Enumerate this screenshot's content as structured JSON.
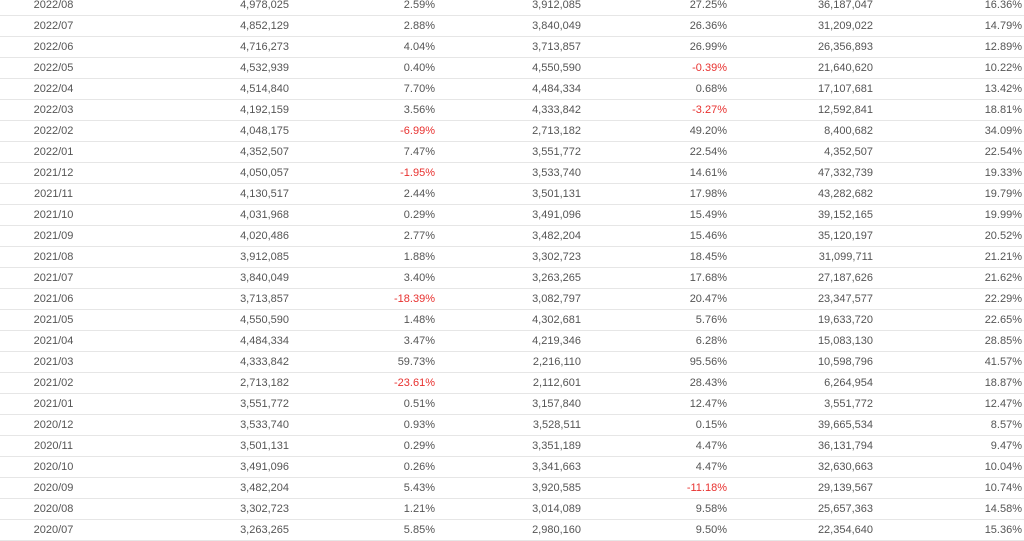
{
  "table": {
    "rows": [
      [
        "2022/08",
        "4,978,025",
        "2.59%",
        "3,912,085",
        "27.25%",
        "36,187,047",
        "16.36%"
      ],
      [
        "2022/07",
        "4,852,129",
        "2.88%",
        "3,840,049",
        "26.36%",
        "31,209,022",
        "14.79%"
      ],
      [
        "2022/06",
        "4,716,273",
        "4.04%",
        "3,713,857",
        "26.99%",
        "26,356,893",
        "12.89%"
      ],
      [
        "2022/05",
        "4,532,939",
        "0.40%",
        "4,550,590",
        "-0.39%",
        "21,640,620",
        "10.22%"
      ],
      [
        "2022/04",
        "4,514,840",
        "7.70%",
        "4,484,334",
        "0.68%",
        "17,107,681",
        "13.42%"
      ],
      [
        "2022/03",
        "4,192,159",
        "3.56%",
        "4,333,842",
        "-3.27%",
        "12,592,841",
        "18.81%"
      ],
      [
        "2022/02",
        "4,048,175",
        "-6.99%",
        "2,713,182",
        "49.20%",
        "8,400,682",
        "34.09%"
      ],
      [
        "2022/01",
        "4,352,507",
        "7.47%",
        "3,551,772",
        "22.54%",
        "4,352,507",
        "22.54%"
      ],
      [
        "2021/12",
        "4,050,057",
        "-1.95%",
        "3,533,740",
        "14.61%",
        "47,332,739",
        "19.33%"
      ],
      [
        "2021/11",
        "4,130,517",
        "2.44%",
        "3,501,131",
        "17.98%",
        "43,282,682",
        "19.79%"
      ],
      [
        "2021/10",
        "4,031,968",
        "0.29%",
        "3,491,096",
        "15.49%",
        "39,152,165",
        "19.99%"
      ],
      [
        "2021/09",
        "4,020,486",
        "2.77%",
        "3,482,204",
        "15.46%",
        "35,120,197",
        "20.52%"
      ],
      [
        "2021/08",
        "3,912,085",
        "1.88%",
        "3,302,723",
        "18.45%",
        "31,099,711",
        "21.21%"
      ],
      [
        "2021/07",
        "3,840,049",
        "3.40%",
        "3,263,265",
        "17.68%",
        "27,187,626",
        "21.62%"
      ],
      [
        "2021/06",
        "3,713,857",
        "-18.39%",
        "3,082,797",
        "20.47%",
        "23,347,577",
        "22.29%"
      ],
      [
        "2021/05",
        "4,550,590",
        "1.48%",
        "4,302,681",
        "5.76%",
        "19,633,720",
        "22.65%"
      ],
      [
        "2021/04",
        "4,484,334",
        "3.47%",
        "4,219,346",
        "6.28%",
        "15,083,130",
        "28.85%"
      ],
      [
        "2021/03",
        "4,333,842",
        "59.73%",
        "2,216,110",
        "95.56%",
        "10,598,796",
        "41.57%"
      ],
      [
        "2021/02",
        "2,713,182",
        "-23.61%",
        "2,112,601",
        "28.43%",
        "6,264,954",
        "18.87%"
      ],
      [
        "2021/01",
        "3,551,772",
        "0.51%",
        "3,157,840",
        "12.47%",
        "3,551,772",
        "12.47%"
      ],
      [
        "2020/12",
        "3,533,740",
        "0.93%",
        "3,528,511",
        "0.15%",
        "39,665,534",
        "8.57%"
      ],
      [
        "2020/11",
        "3,501,131",
        "0.29%",
        "3,351,189",
        "4.47%",
        "36,131,794",
        "9.47%"
      ],
      [
        "2020/10",
        "3,491,096",
        "0.26%",
        "3,341,663",
        "4.47%",
        "32,630,663",
        "10.04%"
      ],
      [
        "2020/09",
        "3,482,204",
        "5.43%",
        "3,920,585",
        "-11.18%",
        "29,139,567",
        "10.74%"
      ],
      [
        "2020/08",
        "3,302,723",
        "1.21%",
        "3,014,089",
        "9.58%",
        "25,657,363",
        "14.58%"
      ],
      [
        "2020/07",
        "3,263,265",
        "5.85%",
        "2,980,160",
        "9.50%",
        "22,354,640",
        "15.36%"
      ]
    ]
  },
  "colors": {
    "text": "#555555",
    "negative": "#e8312f",
    "row_border": "#e6e6e6",
    "background": "#ffffff"
  }
}
